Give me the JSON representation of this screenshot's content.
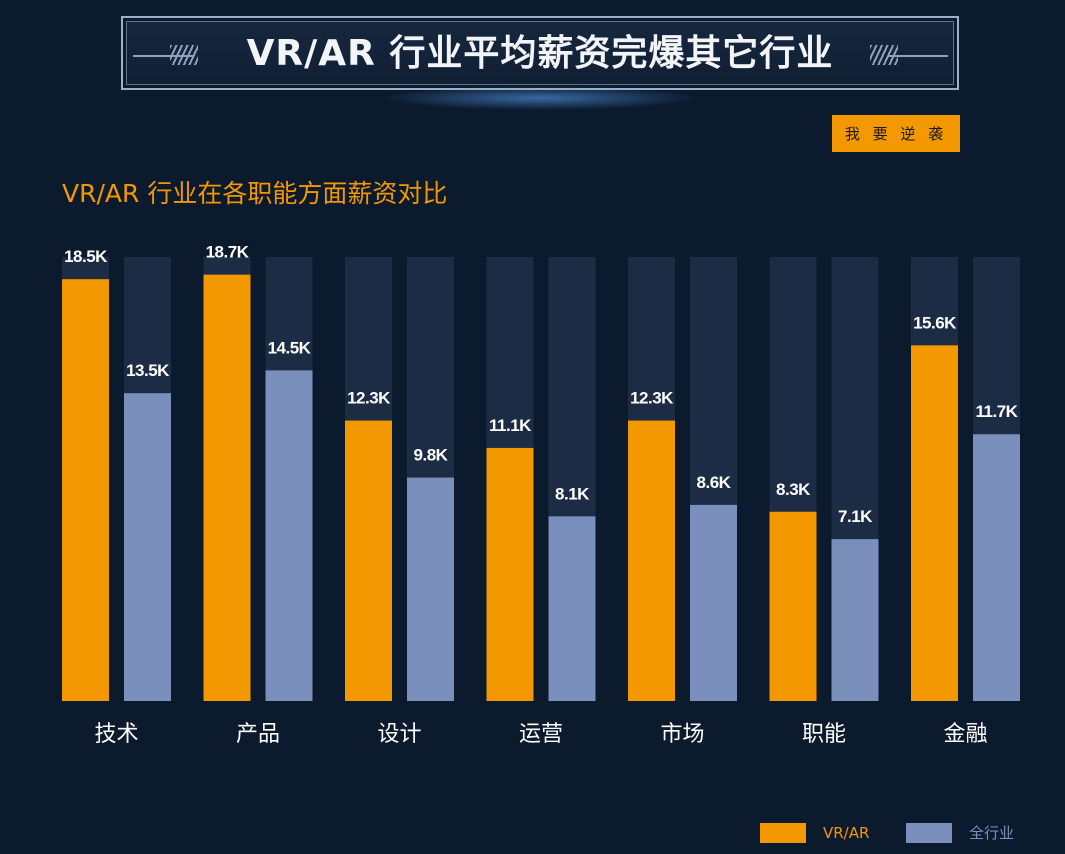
{
  "banner": {
    "title": "VR/AR 行业平均薪资完爆其它行业"
  },
  "cta_button": {
    "label": "我 要 逆 袭"
  },
  "chart_data": {
    "type": "bar",
    "title": "VR/AR 行业在各职能方面薪资对比",
    "categories": [
      "技术",
      "产品",
      "设计",
      "运营",
      "市场",
      "职能",
      "金融"
    ],
    "series": [
      {
        "name": "VR/AR",
        "values": [
          18.5,
          18.7,
          12.3,
          11.1,
          12.3,
          8.3,
          15.6
        ],
        "labels": [
          "18.5K",
          "18.7K",
          "12.3K",
          "11.1K",
          "12.3K",
          "8.3K",
          "15.6K"
        ]
      },
      {
        "name": "全行业",
        "values": [
          13.5,
          14.5,
          9.8,
          8.1,
          8.6,
          7.1,
          11.7
        ],
        "labels": [
          "13.5K",
          "14.5K",
          "9.8K",
          "8.1K",
          "8.6K",
          "7.1K",
          "11.7K"
        ]
      }
    ],
    "legend_position": "bottom-right",
    "colors": {
      "vrar": "#f39800",
      "all": "#7b8fbc",
      "track": "#1c2c44"
    }
  }
}
